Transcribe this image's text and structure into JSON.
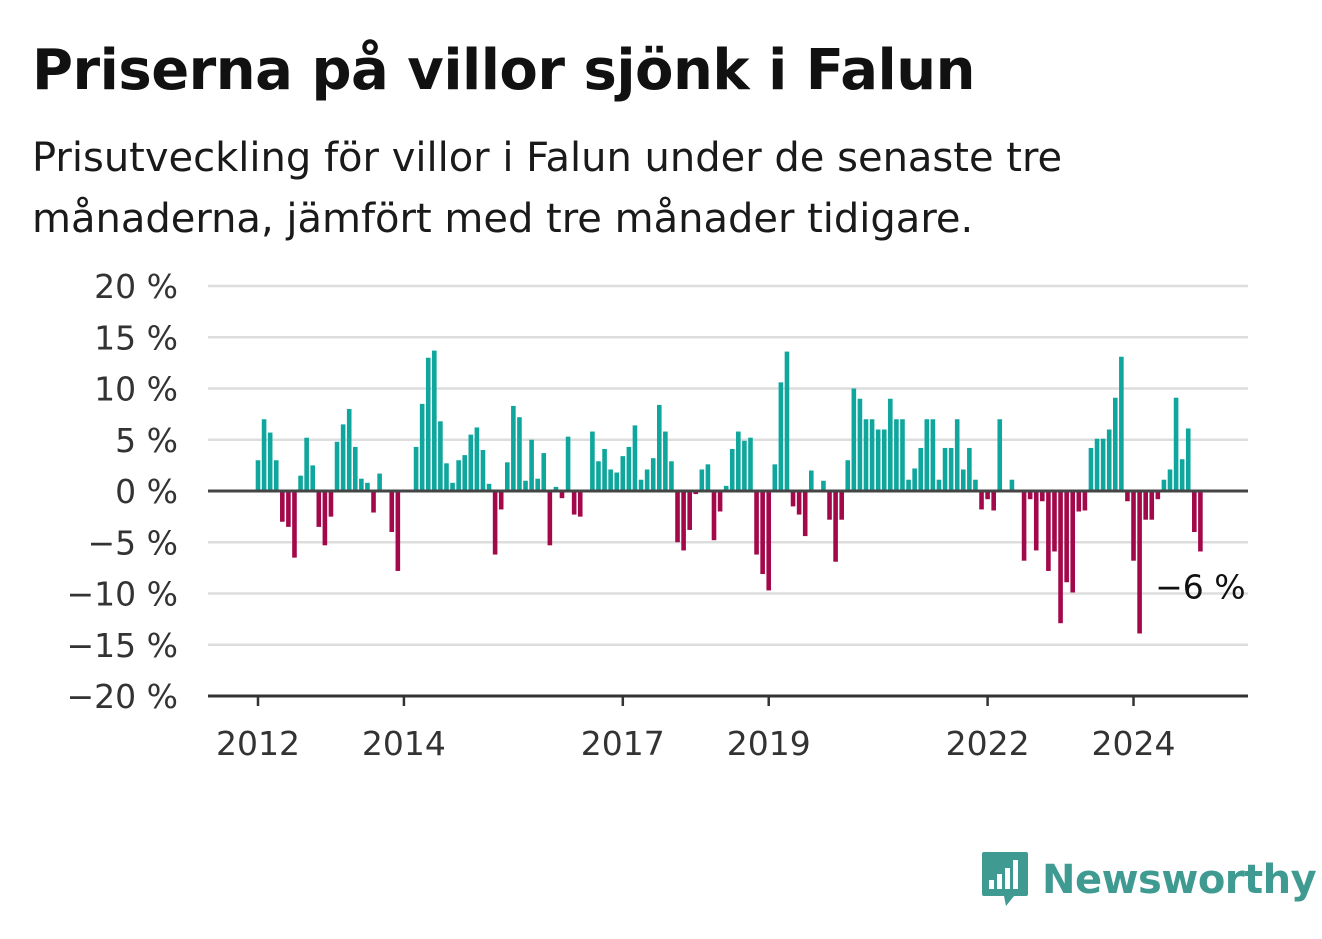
{
  "header": {
    "title": "Priserna på villor sjönk i Falun",
    "subtitle": "Prisutveckling för villor i Falun under de senaste tre månaderna, jämfört med tre månader tidigare."
  },
  "brand": {
    "name": "Newsworthy",
    "icon": "newsworthy-logo-icon",
    "color": "#3f9b91"
  },
  "colors": {
    "positive": "#0fa69d",
    "negative": "#a3094a",
    "zero_line": "#444444",
    "grid": "#dddddd"
  },
  "chart_data": {
    "type": "bar",
    "title": "Priserna på villor sjönk i Falun",
    "ylim": [
      -20,
      20
    ],
    "yticks": [
      20,
      15,
      10,
      5,
      0,
      -5,
      -10,
      -15,
      -20
    ],
    "ytick_labels": [
      "20 %",
      "15 %",
      "10 %",
      "5 %",
      "0 %",
      "−5 %",
      "−10 %",
      "−15 %",
      "−20 %"
    ],
    "xtick_labels": [
      "2012",
      "2014",
      "2017",
      "2019",
      "2022",
      "2024"
    ],
    "xtick_years": [
      2012,
      2014,
      2017,
      2019,
      2022,
      2024
    ],
    "start": "2012-01",
    "grid": true,
    "annotation": "−6 %",
    "values": [
      3,
      7,
      5.7,
      3,
      -3,
      -3.5,
      -6.5,
      1.5,
      5.2,
      2.5,
      -3.5,
      -5.3,
      -2.5,
      4.8,
      6.5,
      8,
      4.3,
      1.2,
      0.8,
      -2.1,
      1.7,
      0,
      -4,
      -7.8,
      0,
      0,
      4.3,
      8.5,
      13,
      13.7,
      6.8,
      2.7,
      0.8,
      3,
      3.5,
      5.5,
      6.2,
      4,
      0.7,
      -6.2,
      -1.8,
      2.8,
      8.3,
      7.2,
      1,
      5,
      1.2,
      3.7,
      -5.3,
      0.4,
      -0.7,
      5.3,
      -2.3,
      -2.5,
      0,
      5.8,
      2.9,
      4.1,
      2.1,
      1.8,
      3.4,
      4.3,
      6.4,
      1.1,
      2.1,
      3.2,
      8.4,
      5.8,
      2.9,
      -5,
      -5.8,
      -3.8,
      -0.3,
      2.1,
      2.6,
      -4.8,
      -2,
      0.5,
      4.1,
      5.8,
      4.9,
      5.2,
      -6.2,
      -8.1,
      -9.7,
      2.6,
      10.6,
      13.6,
      -1.5,
      -2.3,
      -4.4,
      2,
      0,
      1,
      -2.8,
      -6.9,
      -2.8,
      3,
      10,
      9,
      7,
      7,
      6,
      6,
      9,
      7,
      7,
      1.1,
      2.2,
      4.2,
      7,
      7,
      1.1,
      4.2,
      4.2,
      7,
      2.1,
      4.2,
      1.1,
      -1.8,
      -0.8,
      -1.9,
      7,
      0,
      1.1,
      0,
      -6.8,
      -0.8,
      -5.8,
      -1,
      -7.8,
      -5.9,
      -12.9,
      -8.9,
      -9.9,
      -2,
      -1.9,
      4.2,
      5.1,
      5.1,
      6,
      9.1,
      13.1,
      -1,
      -6.8,
      -13.9,
      -2.8,
      -2.8,
      -0.8,
      1.1,
      2.1,
      9.1,
      3.1,
      6.1,
      -4,
      -5.9
    ]
  }
}
